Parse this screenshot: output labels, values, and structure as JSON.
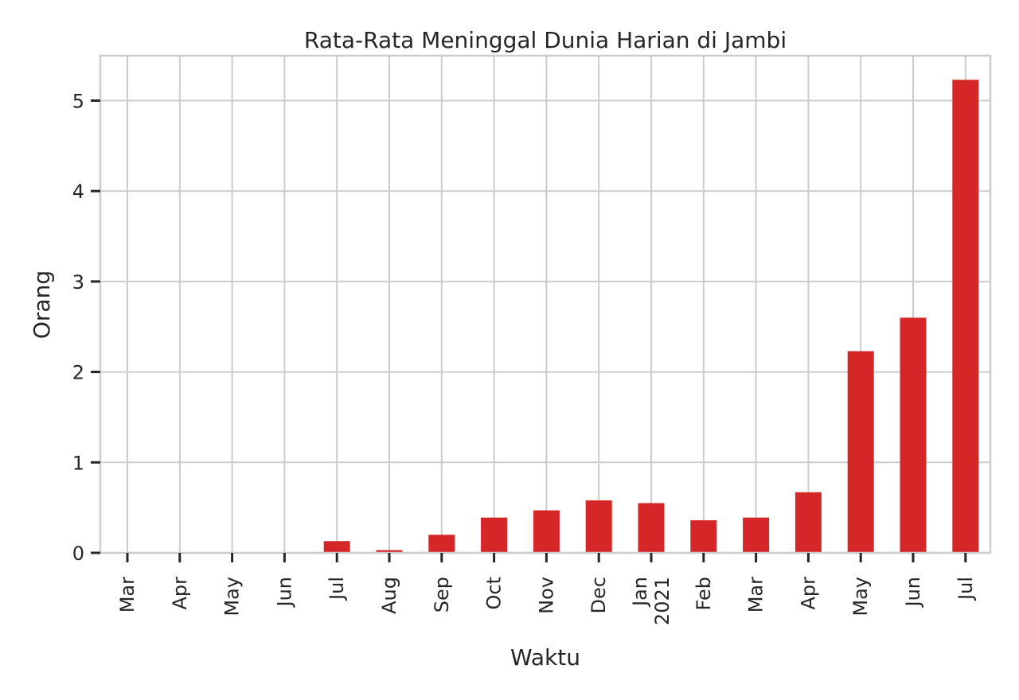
{
  "chart_data": {
    "type": "bar",
    "title": "Rata-Rata Meninggal Dunia Harian di Jambi",
    "xlabel": "Waktu",
    "ylabel": "Orang",
    "categories": [
      "Mar",
      "Apr",
      "May",
      "Jun",
      "Jul",
      "Aug",
      "Sep",
      "Oct",
      "Nov",
      "Dec",
      "Jan\n2021",
      "Feb",
      "Mar",
      "Apr",
      "May",
      "Jun",
      "Jul"
    ],
    "values": [
      0,
      0,
      0,
      0,
      0.13,
      0.03,
      0.2,
      0.39,
      0.47,
      0.58,
      0.55,
      0.36,
      0.39,
      0.67,
      2.23,
      2.6,
      5.23
    ],
    "yticks": [
      0,
      1,
      2,
      3,
      4,
      5
    ],
    "ylim": [
      0,
      5.5
    ],
    "grid": true,
    "bar_color": "#d62728"
  }
}
